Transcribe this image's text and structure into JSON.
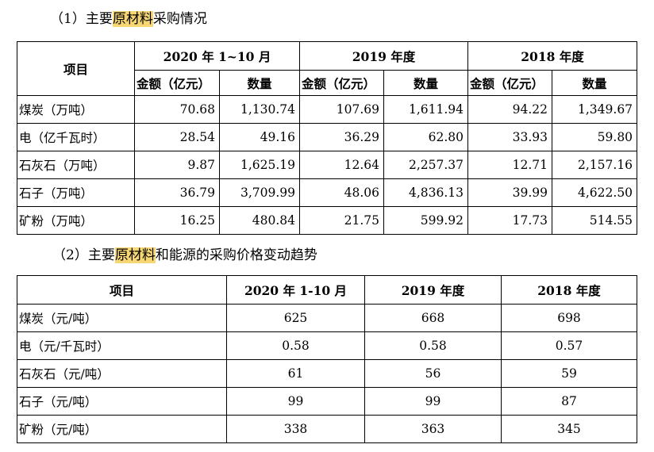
{
  "section1": {
    "prefix": "（1）主要",
    "highlight": "原材料",
    "suffix": "采购情况"
  },
  "table1": {
    "item_header": "项目",
    "periods": [
      "2020 年 1~10 月",
      "2019 年度",
      "2018 年度"
    ],
    "amount_label": "金额（亿元）",
    "qty_label": "数量",
    "rows": [
      {
        "item": "煤炭（万吨）",
        "values": [
          "70.68",
          "1,130.74",
          "107.69",
          "1,611.94",
          "94.22",
          "1,349.67"
        ]
      },
      {
        "item": "电（亿千瓦时）",
        "values": [
          "28.54",
          "49.16",
          "36.29",
          "62.80",
          "33.93",
          "59.80"
        ]
      },
      {
        "item": "石灰石（万吨）",
        "values": [
          "9.87",
          "1,625.19",
          "12.64",
          "2,257.37",
          "12.71",
          "2,157.16"
        ]
      },
      {
        "item": "石子（万吨）",
        "values": [
          "36.79",
          "3,709.99",
          "48.06",
          "4,836.13",
          "39.99",
          "4,622.50"
        ]
      },
      {
        "item": "矿粉（万吨）",
        "values": [
          "16.25",
          "480.84",
          "21.75",
          "599.92",
          "17.73",
          "514.55"
        ]
      }
    ]
  },
  "section2": {
    "prefix": "（2）主要",
    "highlight": "原材料",
    "suffix": "和能源的采购价格变动趋势"
  },
  "table2": {
    "item_header": "项目",
    "periods": [
      "2020 年 1-10 月",
      "2019 年度",
      "2018 年度"
    ],
    "rows": [
      {
        "item": "煤炭（元/吨）",
        "values": [
          "625",
          "668",
          "698"
        ]
      },
      {
        "item": "电（元/千瓦时）",
        "values": [
          "0.58",
          "0.58",
          "0.57"
        ]
      },
      {
        "item": "石灰石（元/吨）",
        "values": [
          "61",
          "56",
          "59"
        ]
      },
      {
        "item": "石子（元/吨）",
        "values": [
          "99",
          "99",
          "87"
        ]
      },
      {
        "item": "矿粉（元/吨）",
        "values": [
          "338",
          "363",
          "345"
        ]
      }
    ]
  },
  "colors": {
    "highlight": "#f7d774",
    "border": "#000000"
  }
}
